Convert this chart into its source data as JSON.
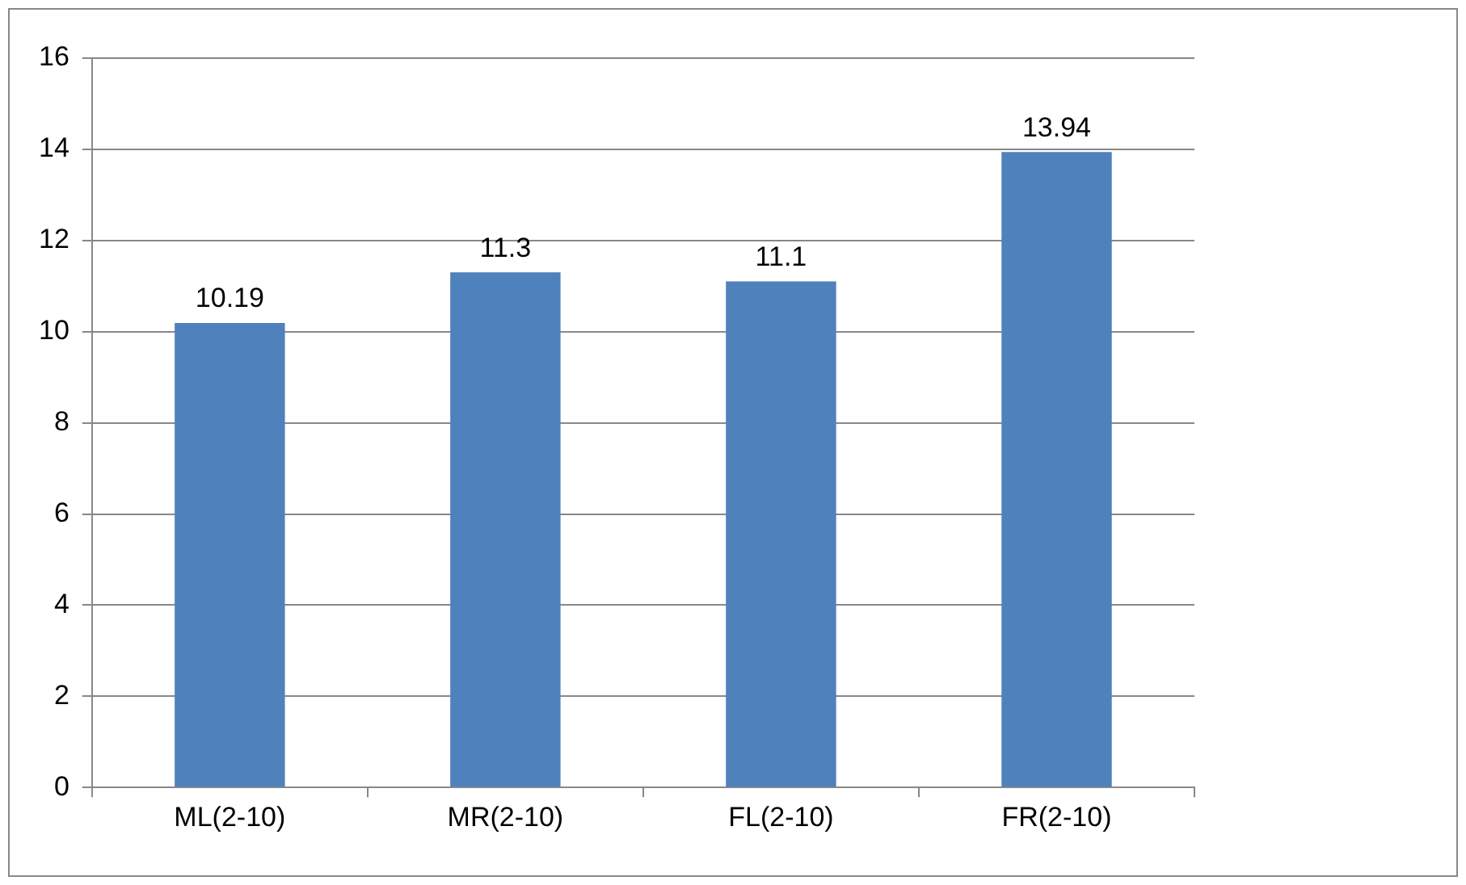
{
  "chart_data": {
    "type": "bar",
    "categories": [
      "ML(2-10)",
      "MR(2-10)",
      "FL(2-10)",
      "FR(2-10)"
    ],
    "values": [
      10.19,
      11.3,
      11.1,
      13.94
    ],
    "color": "#4f81bd",
    "ylim": [
      0,
      16
    ],
    "yticks": [
      0,
      2,
      4,
      6,
      8,
      10,
      12,
      14,
      16
    ],
    "grid": "y",
    "data_labels": true
  }
}
